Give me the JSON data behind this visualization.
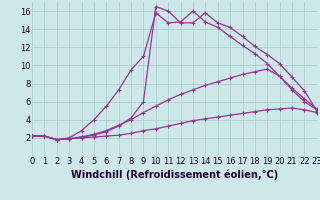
{
  "xlabel": "Windchill (Refroidissement éolien,°C)",
  "xlim": [
    0,
    23
  ],
  "ylim": [
    0,
    17
  ],
  "xticks": [
    0,
    1,
    2,
    3,
    4,
    5,
    6,
    7,
    8,
    9,
    10,
    11,
    12,
    13,
    14,
    15,
    16,
    17,
    18,
    19,
    20,
    21,
    22,
    23
  ],
  "yticks": [
    2,
    4,
    6,
    8,
    10,
    12,
    14,
    16
  ],
  "bg_color": "#cce8e8",
  "grid_color": "#aacccc",
  "line_color": "#993399",
  "line1_x": [
    0,
    1,
    2,
    3,
    4,
    5,
    6,
    7,
    8,
    9,
    10,
    11,
    12,
    13,
    14,
    15,
    16,
    17,
    18,
    19,
    20,
    21,
    22,
    23
  ],
  "line1_y": [
    2.2,
    2.2,
    1.8,
    1.9,
    2.0,
    2.1,
    2.2,
    2.3,
    2.5,
    2.8,
    3.0,
    3.3,
    3.6,
    3.9,
    4.1,
    4.3,
    4.5,
    4.7,
    4.9,
    5.1,
    5.2,
    5.3,
    5.1,
    4.8
  ],
  "line2_x": [
    0,
    1,
    2,
    3,
    4,
    5,
    6,
    7,
    8,
    9,
    10,
    11,
    12,
    13,
    14,
    15,
    16,
    17,
    18,
    19,
    20,
    21,
    22,
    23
  ],
  "line2_y": [
    2.2,
    2.2,
    1.8,
    1.9,
    2.1,
    2.4,
    2.8,
    3.4,
    4.0,
    4.8,
    5.5,
    6.2,
    6.8,
    7.3,
    7.8,
    8.2,
    8.6,
    9.0,
    9.3,
    9.6,
    8.8,
    7.5,
    6.3,
    5.2
  ],
  "line3_x": [
    0,
    1,
    2,
    3,
    4,
    5,
    6,
    7,
    8,
    9,
    10,
    11,
    12,
    13,
    14,
    15,
    16,
    17,
    18,
    19,
    20,
    21,
    22,
    23
  ],
  "line3_y": [
    2.2,
    2.2,
    1.8,
    2.0,
    2.8,
    4.0,
    5.5,
    7.3,
    9.5,
    11.0,
    15.8,
    14.7,
    14.8,
    16.0,
    14.8,
    14.2,
    13.2,
    12.2,
    11.3,
    10.2,
    8.8,
    7.3,
    6.0,
    5.1
  ],
  "line4_x": [
    0,
    1,
    2,
    3,
    4,
    5,
    6,
    7,
    8,
    9,
    10,
    11,
    12,
    13,
    14,
    15,
    16,
    17,
    18,
    19,
    20,
    21,
    22,
    23
  ],
  "line4_y": [
    2.2,
    2.2,
    1.8,
    1.9,
    2.1,
    2.3,
    2.7,
    3.3,
    4.2,
    6.0,
    16.5,
    16.0,
    14.7,
    14.7,
    15.8,
    14.7,
    14.2,
    13.2,
    12.1,
    11.2,
    10.2,
    8.7,
    7.2,
    5.0
  ],
  "tick_fontsize": 6,
  "xlabel_fontsize": 7
}
